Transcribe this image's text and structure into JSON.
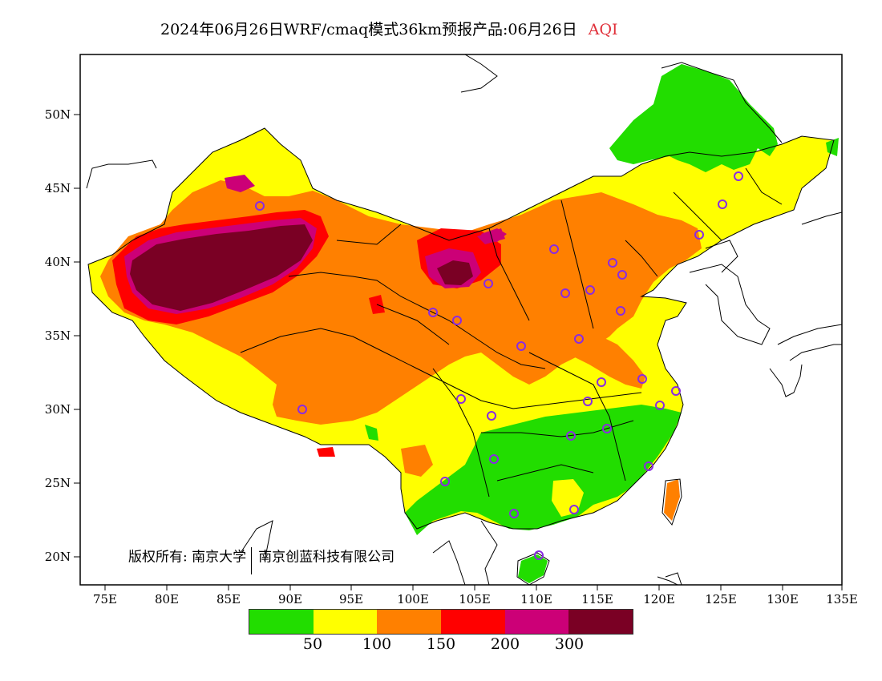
{
  "title": {
    "main": "2024年06月26日WRF/cmaq模式36km预报产品:06月26日",
    "variable": "AQI"
  },
  "axes": {
    "lat_labels": [
      "50N",
      "45N",
      "40N",
      "35N",
      "30N",
      "25N",
      "20N"
    ],
    "lon_labels": [
      "75E",
      "80E",
      "85E",
      "90E",
      "95E",
      "100E",
      "105E",
      "110E",
      "115E",
      "120E",
      "125E",
      "130E",
      "135E"
    ]
  },
  "copyright": {
    "owner_label": "版权所有:",
    "org1": "南京大学",
    "org2": "南京创蓝科技有限公司"
  },
  "legend": {
    "colors": [
      "#22dd00",
      "#ffff00",
      "#ff8000",
      "#ff0000",
      "#cc0077",
      "#7a0024"
    ],
    "labels": [
      "50",
      "100",
      "150",
      "200",
      "300"
    ]
  },
  "colors": {
    "good": "#22dd00",
    "moderate": "#ffff00",
    "unhealthy_sensitive": "#ff8000",
    "unhealthy": "#ff0000",
    "very_unhealthy": "#cc0077",
    "hazardous": "#7a0024",
    "station_marker": "#8a2be2"
  }
}
